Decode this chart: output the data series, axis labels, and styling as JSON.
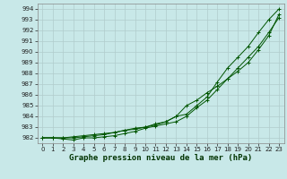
{
  "title": "Graphe pression niveau de la mer (hPa)",
  "bg_color": "#c8e8e8",
  "grid_color": "#b0cccc",
  "line_color": "#005500",
  "x_values": [
    0,
    1,
    2,
    3,
    4,
    5,
    6,
    7,
    8,
    9,
    10,
    11,
    12,
    13,
    14,
    15,
    16,
    17,
    18,
    19,
    20,
    21,
    22,
    23
  ],
  "series1": [
    982.0,
    982.0,
    982.0,
    982.0,
    982.1,
    982.2,
    982.3,
    982.5,
    982.7,
    982.8,
    983.0,
    983.2,
    983.5,
    984.0,
    984.2,
    985.0,
    985.8,
    987.2,
    988.5,
    989.5,
    990.5,
    991.8,
    993.0,
    994.0
  ],
  "series2": [
    982.0,
    982.0,
    981.9,
    981.8,
    982.0,
    982.0,
    982.1,
    982.2,
    982.4,
    982.6,
    982.9,
    983.1,
    983.3,
    983.5,
    984.0,
    984.8,
    985.5,
    986.5,
    987.5,
    988.5,
    989.5,
    990.5,
    991.8,
    993.2
  ],
  "series3": [
    982.0,
    982.0,
    982.0,
    982.1,
    982.2,
    982.3,
    982.4,
    982.5,
    982.7,
    982.9,
    983.0,
    983.3,
    983.5,
    984.0,
    985.0,
    985.5,
    986.2,
    986.8,
    987.5,
    988.2,
    989.0,
    990.2,
    991.5,
    993.5
  ],
  "ylim_min": 981.5,
  "ylim_max": 994.5,
  "xlim_min": -0.5,
  "xlim_max": 23.5,
  "yticks": [
    982,
    983,
    984,
    985,
    986,
    987,
    988,
    989,
    990,
    991,
    992,
    993,
    994
  ],
  "xticks": [
    0,
    1,
    2,
    3,
    4,
    5,
    6,
    7,
    8,
    9,
    10,
    11,
    12,
    13,
    14,
    15,
    16,
    17,
    18,
    19,
    20,
    21,
    22,
    23
  ],
  "title_fontsize": 6.5,
  "tick_fontsize": 5.0,
  "marker_size": 2.5,
  "linewidth": 0.7
}
